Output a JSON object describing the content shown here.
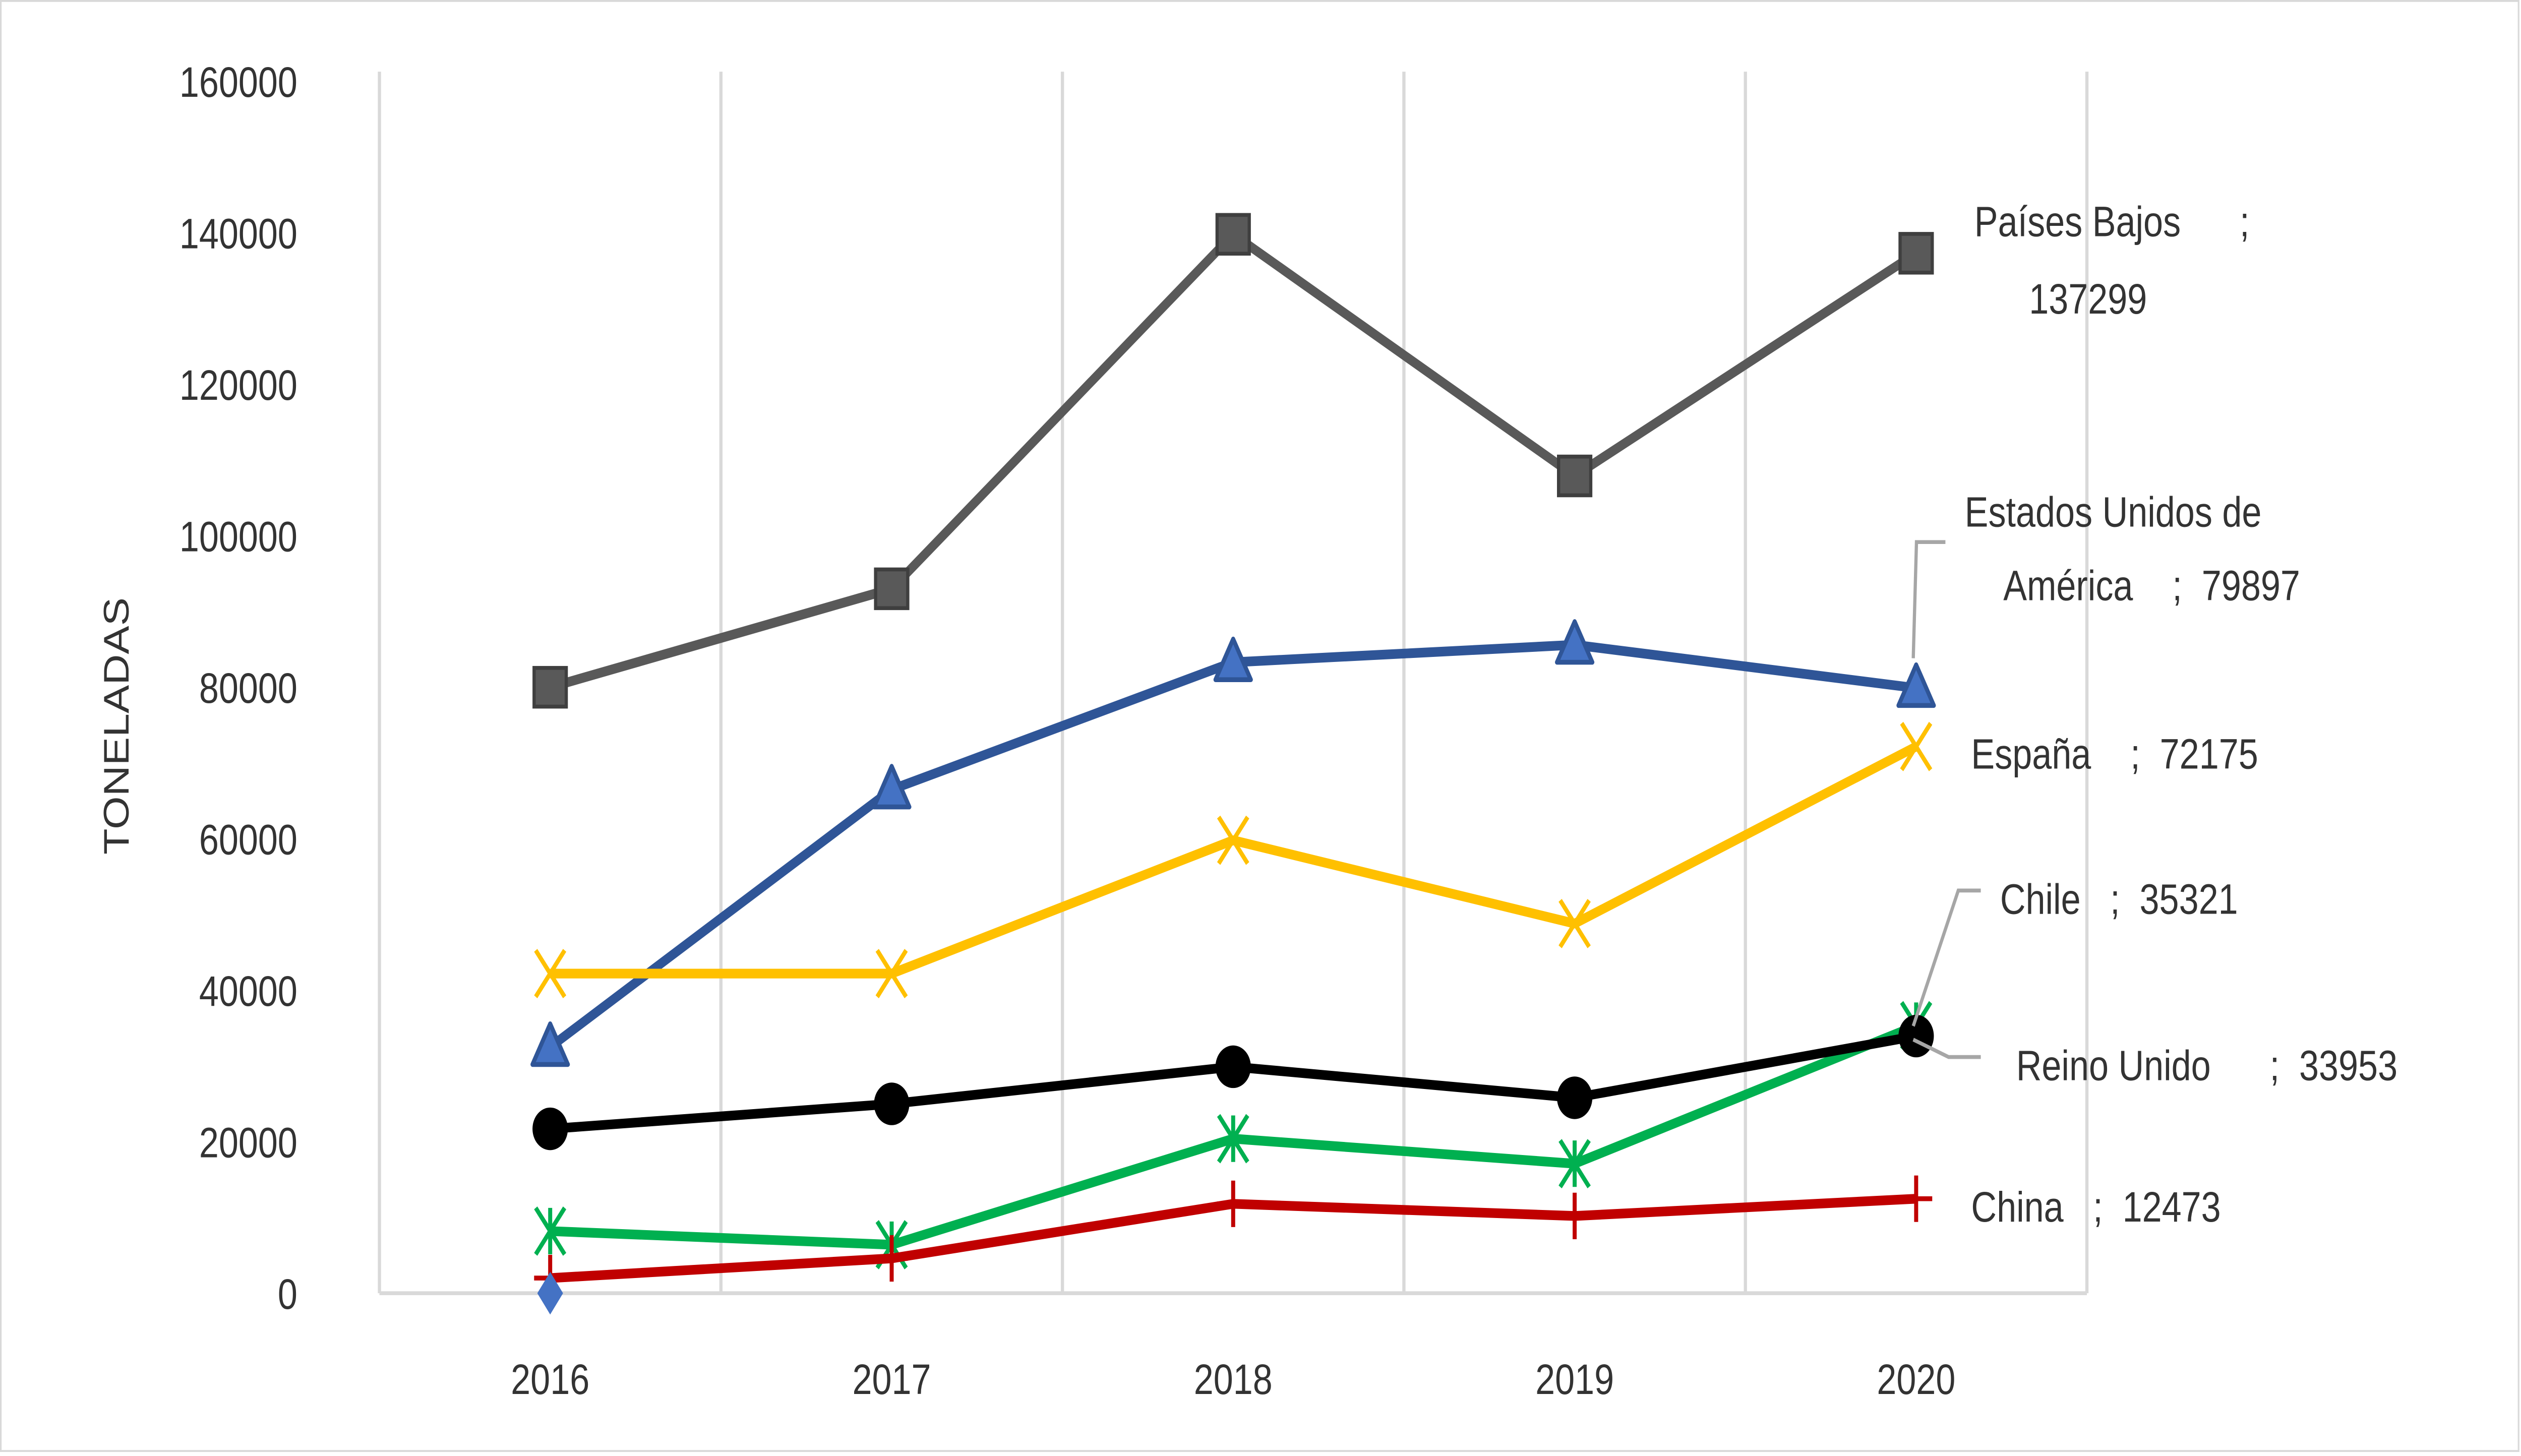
{
  "chart_data": {
    "type": "line",
    "ylabel": "TONELADAS",
    "xlabel": "",
    "categories": [
      "2016",
      "2017",
      "2018",
      "2019",
      "2020"
    ],
    "ylim": [
      0,
      160000
    ],
    "yticks": [
      "0",
      "20000",
      "40000",
      "60000",
      "80000",
      "100000",
      "120000",
      "140000",
      "160000"
    ],
    "grid": "vertical",
    "legend": "none (data labels at last point)",
    "series": [
      {
        "name": "Países Bajos",
        "color": "#595959",
        "marker": "square",
        "values": [
          80000,
          93000,
          139800,
          107900,
          137299
        ],
        "label": [
          "Países Bajos      ;",
          "137299"
        ]
      },
      {
        "name": "Estados Unidos de América",
        "color": "#2F5597",
        "marker": "triangle",
        "values": [
          32500,
          66500,
          83300,
          85600,
          79897
        ],
        "label": [
          "Estados Unidos de",
          "América    ;  79897"
        ]
      },
      {
        "name": "España",
        "color": "#FFC000",
        "marker": "x",
        "values": [
          42200,
          42200,
          59800,
          48800,
          72175
        ],
        "label": [
          "España    ;  72175"
        ]
      },
      {
        "name": "Chile",
        "color": "#00B050",
        "marker": "star",
        "values": [
          8200,
          6400,
          20400,
          17100,
          35321
        ],
        "label": [
          "Chile   ;  35321"
        ]
      },
      {
        "name": "Reino Unido",
        "color": "#000000",
        "marker": "circle",
        "values": [
          21700,
          25000,
          29900,
          25800,
          33953
        ],
        "label": [
          "Reino Unido      ;  33953"
        ]
      },
      {
        "name": "China",
        "color": "#C00000",
        "marker": "plus",
        "values": [
          2000,
          4600,
          11800,
          10200,
          12473
        ],
        "label": [
          "China   ;  12473"
        ]
      },
      {
        "name": "",
        "color": "#4472C4",
        "marker": "diamond",
        "values": [
          0,
          null,
          null,
          null,
          null
        ]
      }
    ]
  }
}
